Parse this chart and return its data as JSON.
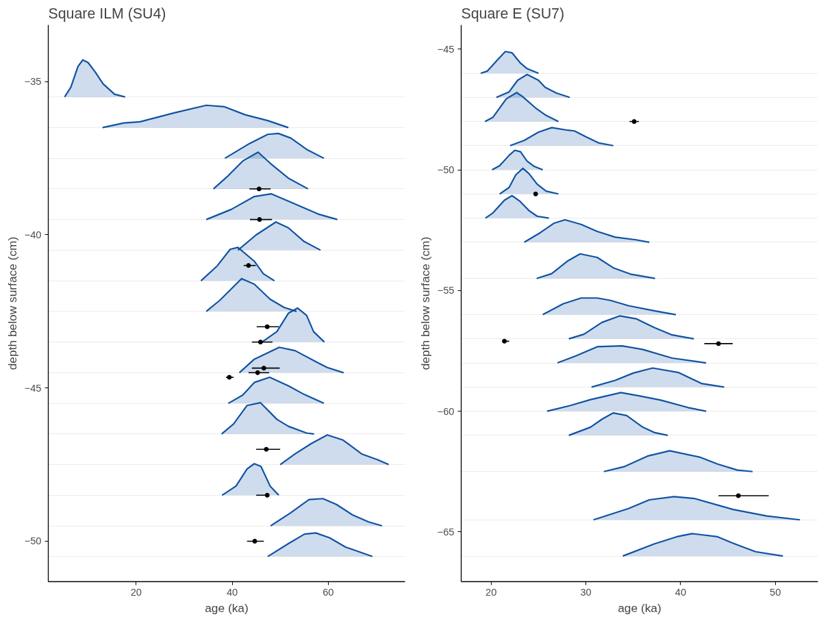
{
  "chart_data": [
    {
      "type": "area",
      "title": "Square ILM (SU4)",
      "xlabel": "age (ka)",
      "ylabel": "depth below surface (cm)",
      "xlim": [
        1.7,
        76
      ],
      "ylim": [
        -51.32,
        -33.15
      ],
      "xticks": [
        20,
        40,
        60
      ],
      "yticks": [
        -35,
        -40,
        -45,
        -50,
        {
          "value": -35.5,
          "label": null
        },
        {
          "value": -36.5,
          "label": null
        },
        {
          "value": -37.5,
          "label": null
        },
        {
          "value": -38.5,
          "label": null
        },
        {
          "value": -39.5,
          "label": null
        },
        {
          "value": -40.5,
          "label": null
        },
        {
          "value": -41.5,
          "label": null
        },
        {
          "value": -42.5,
          "label": null
        },
        {
          "value": -43.5,
          "label": null
        },
        {
          "value": -44.5,
          "label": null
        },
        {
          "value": -45.5,
          "label": null
        },
        {
          "value": -46.5,
          "label": null
        },
        {
          "value": -47.5,
          "label": null
        },
        {
          "value": -48.5,
          "label": null
        },
        {
          "value": -49.5,
          "label": null
        },
        {
          "value": -50.5,
          "label": null
        }
      ],
      "grid": "y",
      "series": [
        {
          "color": "#0f52a3",
          "x": [
            5.1,
            6.4,
            7.9,
            8.9,
            10.0,
            11.5,
            13.1,
            15.5,
            17.7
          ],
          "values": [
            -35.5,
            -35.18,
            -34.5,
            -34.29,
            -34.38,
            -34.69,
            -35.07,
            -35.41,
            -35.5
          ]
        },
        {
          "color": "#0f52a3",
          "x": [
            13.0,
            17.4,
            20.8,
            27.9,
            34.6,
            38.4,
            42.7,
            47.4,
            51.7
          ],
          "values": [
            -36.5,
            -36.35,
            -36.31,
            -36.02,
            -35.77,
            -35.82,
            -36.08,
            -36.27,
            -36.5
          ]
        },
        {
          "color": "#0f52a3",
          "x": [
            38.5,
            43.6,
            47.4,
            49.6,
            52.2,
            55.5,
            59.1
          ],
          "values": [
            -37.5,
            -37.02,
            -36.72,
            -36.69,
            -36.84,
            -37.21,
            -37.5
          ]
        },
        {
          "color": "#0f52a3",
          "x": [
            36.1,
            38.9,
            42.2,
            45.4,
            47.9,
            51.7,
            55.8
          ],
          "values": [
            -38.5,
            -38.11,
            -37.59,
            -37.3,
            -37.66,
            -38.15,
            -38.5
          ]
        },
        {
          "color": "#0f52a3",
          "x": [
            34.6,
            39.8,
            44.6,
            48.1,
            51.7,
            57.9,
            61.9
          ],
          "values": [
            -39.5,
            -39.17,
            -38.75,
            -38.66,
            -38.9,
            -39.32,
            -39.5
          ]
        },
        {
          "color": "#0f52a3",
          "x": [
            41.2,
            45.0,
            49.1,
            51.7,
            55.0,
            58.4
          ],
          "values": [
            -40.5,
            -40.0,
            -39.58,
            -39.77,
            -40.22,
            -40.5
          ]
        },
        {
          "color": "#0f52a3",
          "x": [
            33.5,
            36.9,
            39.6,
            41.2,
            44.6,
            46.5,
            48.8
          ],
          "values": [
            -41.5,
            -41.01,
            -40.47,
            -40.41,
            -40.86,
            -41.27,
            -41.5
          ]
        },
        {
          "color": "#0f52a3",
          "x": [
            34.6,
            37.4,
            41.95,
            44.6,
            47.9,
            50.8,
            53.4
          ],
          "values": [
            -42.5,
            -42.14,
            -41.43,
            -41.61,
            -42.1,
            -42.37,
            -42.5
          ]
        },
        {
          "color": "#0f52a3",
          "x": [
            46.2,
            49.3,
            51.7,
            53.6,
            55.5,
            56.95,
            59.2
          ],
          "values": [
            -43.5,
            -43.16,
            -42.56,
            -42.39,
            -42.63,
            -43.16,
            -43.5
          ]
        },
        {
          "color": "#0f52a3",
          "x": [
            41.5,
            44.6,
            49.8,
            53.1,
            57.9,
            59.8,
            63.2
          ],
          "values": [
            -44.5,
            -44.06,
            -43.67,
            -43.78,
            -44.18,
            -44.33,
            -44.5
          ]
        },
        {
          "color": "#0f52a3",
          "x": [
            39.2,
            42.2,
            44.6,
            47.8,
            51.7,
            55.0,
            59.1
          ],
          "values": [
            -45.5,
            -45.23,
            -44.82,
            -44.65,
            -44.93,
            -45.21,
            -45.5
          ]
        },
        {
          "color": "#0f52a3",
          "x": [
            37.8,
            40.3,
            43.1,
            45.9,
            49.3,
            51.7,
            55.5,
            57.05
          ],
          "values": [
            -46.5,
            -46.17,
            -45.57,
            -45.48,
            -46.02,
            -46.25,
            -46.47,
            -46.5
          ]
        },
        {
          "color": "#0f52a3",
          "x": [
            50.0,
            53.1,
            56.5,
            59.8,
            63.1,
            66.95,
            70.3,
            72.6
          ],
          "values": [
            -47.5,
            -47.15,
            -46.81,
            -46.53,
            -46.7,
            -47.15,
            -47.34,
            -47.5
          ]
        },
        {
          "color": "#0f52a3",
          "x": [
            37.9,
            40.8,
            43.1,
            44.6,
            46.0,
            47.9,
            49.7
          ],
          "values": [
            -48.5,
            -48.2,
            -47.64,
            -47.47,
            -47.56,
            -48.2,
            -48.5
          ]
        },
        {
          "color": "#0f52a3",
          "x": [
            48.0,
            52.2,
            56.0,
            58.9,
            61.7,
            65.05,
            68.4,
            71.2
          ],
          "values": [
            -49.5,
            -49.07,
            -48.64,
            -48.61,
            -48.8,
            -49.14,
            -49.37,
            -49.5
          ]
        },
        {
          "color": "#0f52a3",
          "x": [
            47.4,
            51.7,
            55.05,
            57.4,
            60.3,
            63.6,
            69.2
          ],
          "values": [
            -50.5,
            -50.08,
            -49.77,
            -49.73,
            -49.89,
            -50.19,
            -50.5
          ]
        },
        {
          "type": "scatter",
          "marker": "circle",
          "color": "#000000",
          "x": [
            45.6,
            45.7,
            43.4,
            47.3,
            45.9,
            46.6,
            45.3,
            39.4,
            47.1,
            47.3,
            44.7
          ],
          "values": [
            -38.5,
            -39.5,
            -41.0,
            -43.0,
            -43.5,
            -44.35,
            -44.5,
            -44.65,
            -47.0,
            -48.5,
            -50.0
          ],
          "xerrors": [
            [
              43.6,
              48.0
            ],
            [
              43.7,
              48.3
            ],
            [
              42.4,
              44.9
            ],
            [
              45.1,
              49.7
            ],
            [
              44.1,
              48.4
            ],
            [
              44.1,
              49.9
            ],
            [
              43.4,
              47.7
            ],
            [
              38.7,
              40.3
            ],
            [
              45.0,
              50.0
            ],
            [
              45.0,
              47.3
            ],
            [
              43.1,
              46.6
            ]
          ]
        }
      ]
    },
    {
      "type": "area",
      "title": "Square E (SU7)",
      "xlabel": "age (ka)",
      "ylabel": "depth below surface (cm)",
      "xlim": [
        16.84,
        54.5
      ],
      "ylim": [
        -67.06,
        -44.0
      ],
      "xticks": [
        20,
        30,
        40,
        50
      ],
      "yticks": [
        -45,
        -50,
        -55,
        -60,
        -65,
        {
          "value": -46,
          "label": null
        },
        {
          "value": -47,
          "label": null
        },
        {
          "value": -48,
          "label": null
        },
        {
          "value": -49,
          "label": null
        },
        {
          "value": -50,
          "label": null
        },
        {
          "value": -51,
          "label": null
        },
        {
          "value": -52,
          "label": null
        },
        {
          "value": -53,
          "label": null
        },
        {
          "value": -54.5,
          "label": null
        },
        {
          "value": -56,
          "label": null
        },
        {
          "value": -57,
          "label": null
        },
        {
          "value": -58,
          "label": null
        },
        {
          "value": -59,
          "label": null
        },
        {
          "value": -60,
          "label": null
        },
        {
          "value": -61,
          "label": null
        },
        {
          "value": -62.5,
          "label": null
        },
        {
          "value": -64.5,
          "label": null
        },
        {
          "value": -66,
          "label": null
        }
      ],
      "grid": "y",
      "series": [
        {
          "color": "#0f52a3",
          "x": [
            18.9,
            19.6,
            20.7,
            21.5,
            22.2,
            23.1,
            23.8,
            25.0
          ],
          "values": [
            -46.0,
            -45.91,
            -45.43,
            -45.1,
            -45.15,
            -45.58,
            -45.81,
            -46.0
          ]
        },
        {
          "color": "#0f52a3",
          "x": [
            20.55,
            21.9,
            22.8,
            23.8,
            25.0,
            25.7,
            26.9,
            28.3
          ],
          "values": [
            -47.0,
            -46.77,
            -46.29,
            -46.05,
            -46.29,
            -46.58,
            -46.82,
            -47.0
          ]
        },
        {
          "color": "#0f52a3",
          "x": [
            19.35,
            20.2,
            21.6,
            22.7,
            23.3,
            24.7,
            25.7,
            27.1
          ],
          "values": [
            -48.0,
            -47.82,
            -47.06,
            -46.8,
            -46.96,
            -47.44,
            -47.72,
            -48.0
          ]
        },
        {
          "color": "#0f52a3",
          "x": [
            22.0,
            23.5,
            25.0,
            26.4,
            28.1,
            28.8,
            30.0,
            31.4,
            32.9
          ],
          "values": [
            -49.0,
            -48.78,
            -48.44,
            -48.25,
            -48.36,
            -48.39,
            -48.63,
            -48.89,
            -49.0
          ]
        },
        {
          "color": "#0f52a3",
          "x": [
            20.1,
            20.9,
            21.9,
            22.5,
            23.1,
            23.8,
            24.5,
            25.45
          ],
          "values": [
            -50.0,
            -49.83,
            -49.4,
            -49.19,
            -49.25,
            -49.64,
            -49.85,
            -50.0
          ]
        },
        {
          "color": "#0f52a3",
          "x": [
            20.9,
            21.9,
            22.6,
            23.35,
            24.0,
            24.85,
            25.8,
            27.1
          ],
          "values": [
            -51.0,
            -50.73,
            -50.21,
            -49.94,
            -50.16,
            -50.59,
            -50.88,
            -51.0
          ]
        },
        {
          "color": "#0f52a3",
          "x": [
            19.4,
            20.2,
            21.4,
            22.2,
            23.06,
            24.0,
            24.85,
            26.1
          ],
          "values": [
            -52.0,
            -51.78,
            -51.26,
            -51.07,
            -51.31,
            -51.69,
            -51.92,
            -52.0
          ]
        },
        {
          "color": "#0f52a3",
          "x": [
            23.5,
            25.2,
            26.65,
            27.8,
            29.5,
            31.2,
            33.1,
            35.3,
            36.7
          ],
          "values": [
            -53.0,
            -52.6,
            -52.21,
            -52.07,
            -52.26,
            -52.55,
            -52.79,
            -52.9,
            -53.0
          ]
        },
        {
          "color": "#0f52a3",
          "x": [
            24.8,
            26.4,
            28.1,
            29.4,
            31.2,
            32.9,
            34.8,
            37.3
          ],
          "values": [
            -54.5,
            -54.3,
            -53.77,
            -53.48,
            -53.63,
            -54.06,
            -54.33,
            -54.5
          ]
        },
        {
          "color": "#0f52a3",
          "x": [
            25.45,
            27.6,
            29.5,
            31.2,
            32.6,
            34.5,
            37.2,
            39.5
          ],
          "values": [
            -56.0,
            -55.55,
            -55.31,
            -55.31,
            -55.41,
            -55.63,
            -55.84,
            -56.0
          ]
        },
        {
          "color": "#0f52a3",
          "x": [
            28.2,
            29.8,
            31.7,
            33.6,
            35.3,
            37.2,
            39.1,
            41.4
          ],
          "values": [
            -57.0,
            -56.81,
            -56.32,
            -56.05,
            -56.17,
            -56.53,
            -56.84,
            -57.0
          ]
        },
        {
          "color": "#0f52a3",
          "x": [
            27.0,
            29.0,
            31.2,
            33.8,
            36.0,
            39.1,
            42.7
          ],
          "values": [
            -58.0,
            -57.7,
            -57.33,
            -57.29,
            -57.44,
            -57.8,
            -58.0
          ]
        },
        {
          "color": "#0f52a3",
          "x": [
            30.6,
            33.1,
            35.0,
            37.05,
            39.8,
            42.2,
            44.6
          ],
          "values": [
            -59.0,
            -58.72,
            -58.42,
            -58.21,
            -58.4,
            -58.85,
            -59.0
          ]
        },
        {
          "color": "#0f52a3",
          "x": [
            25.9,
            28.3,
            30.5,
            33.7,
            35.7,
            37.9,
            40.8,
            42.7
          ],
          "values": [
            -60.0,
            -59.77,
            -59.52,
            -59.23,
            -59.37,
            -59.54,
            -59.85,
            -60.0
          ]
        },
        {
          "color": "#0f52a3",
          "x": [
            28.2,
            30.5,
            31.7,
            32.9,
            34.3,
            36.0,
            37.2,
            38.65
          ],
          "values": [
            -61.0,
            -60.66,
            -60.33,
            -60.07,
            -60.18,
            -60.66,
            -60.88,
            -61.0
          ]
        },
        {
          "color": "#0f52a3",
          "x": [
            31.9,
            34.1,
            36.5,
            38.85,
            42.0,
            43.9,
            46.0,
            47.6
          ],
          "values": [
            -62.5,
            -62.29,
            -61.86,
            -61.64,
            -61.9,
            -62.19,
            -62.44,
            -62.5
          ]
        },
        {
          "color": "#0f52a3",
          "x": [
            30.8,
            34.5,
            36.7,
            39.3,
            41.5,
            45.55,
            49.1,
            52.6
          ],
          "values": [
            -64.5,
            -64.03,
            -63.67,
            -63.54,
            -63.62,
            -64.07,
            -64.34,
            -64.5
          ]
        },
        {
          "color": "#0f52a3",
          "x": [
            33.9,
            37.2,
            39.6,
            41.2,
            43.9,
            45.55,
            47.9,
            50.8
          ],
          "values": [
            -66.0,
            -65.5,
            -65.2,
            -65.07,
            -65.2,
            -65.47,
            -65.82,
            -66.0
          ]
        },
        {
          "type": "scatter",
          "marker": "circle",
          "color": "#000000",
          "x": [
            35.1,
            24.7,
            21.4,
            44.0,
            46.1
          ],
          "values": [
            -48.0,
            -51.0,
            -57.1,
            -57.2,
            -63.5
          ],
          "xerrors": [
            [
              34.6,
              35.6
            ],
            null,
            [
              21.4,
              21.9
            ],
            [
              42.5,
              45.5
            ],
            [
              44.0,
              49.3
            ]
          ]
        }
      ]
    }
  ]
}
